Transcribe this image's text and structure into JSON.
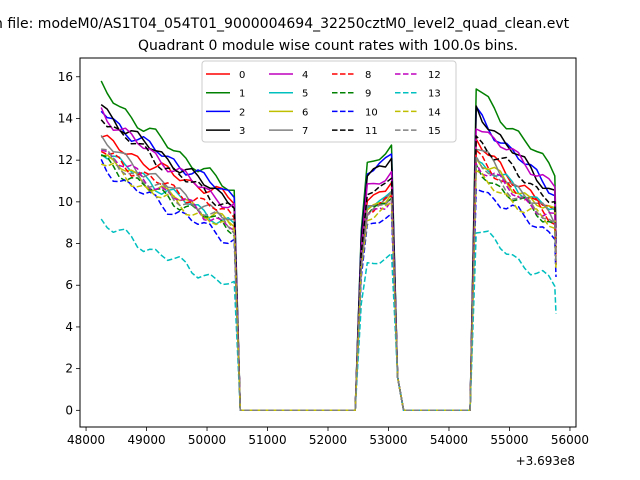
{
  "chart_data": {
    "type": "line",
    "suptitle": "n file: modeM0/AS1T04_054T01_9000004694_32250cztM0_level2_quad_clean.evt",
    "title": "Quadrant 0 module wise count rates with 100.0s bins.",
    "xlabel": "",
    "ylabel": "",
    "x_offset_label": "+3.693e8",
    "xlim": [
      47900,
      56100
    ],
    "ylim": [
      -0.8,
      16.9
    ],
    "xticks": [
      48000,
      49000,
      50000,
      51000,
      52000,
      53000,
      54000,
      55000,
      56000
    ],
    "xtick_labels": [
      "48000",
      "49000",
      "50000",
      "51000",
      "52000",
      "53000",
      "54000",
      "55000",
      "56000"
    ],
    "yticks": [
      0,
      2,
      4,
      6,
      8,
      10,
      12,
      14,
      16
    ],
    "ytick_labels": [
      "0",
      "2",
      "4",
      "6",
      "8",
      "10",
      "12",
      "14",
      "16"
    ],
    "grid": false,
    "legend_position": "top-center",
    "segments": {
      "seg1": {
        "start": 48250,
        "end": 50450
      },
      "gap1": {
        "start": 50550,
        "end": 52450
      },
      "seg2": {
        "start": 52550,
        "end": 53050
      },
      "gap2": {
        "start": 53250,
        "end": 54350
      },
      "seg3": {
        "start": 54450,
        "end": 55750
      }
    },
    "series": [
      {
        "name": "0",
        "color": "#ff0000",
        "dashed": false,
        "level1": [
          13.1,
          10.1
        ],
        "level2": [
          10.3
        ],
        "level3": [
          12.9,
          9.4
        ]
      },
      {
        "name": "1",
        "color": "#008000",
        "dashed": false,
        "level1": [
          15.5,
          10.5
        ],
        "level2": [
          12.0
        ],
        "level3": [
          15.5,
          11.5
        ]
      },
      {
        "name": "2",
        "color": "#0000ff",
        "dashed": false,
        "level1": [
          14.4,
          10.3
        ],
        "level2": [
          11.6
        ],
        "level3": [
          14.3,
          10.5
        ]
      },
      {
        "name": "3",
        "color": "#000000",
        "dashed": false,
        "level1": [
          14.6,
          10.0
        ],
        "level2": [
          11.4
        ],
        "level3": [
          14.5,
          10.4
        ]
      },
      {
        "name": "4",
        "color": "#bf00bf",
        "dashed": false,
        "level1": [
          14.4,
          9.7
        ],
        "level2": [
          10.8
        ],
        "level3": [
          13.8,
          10.8
        ]
      },
      {
        "name": "5",
        "color": "#00bfbf",
        "dashed": false,
        "level1": [
          12.6,
          8.8
        ],
        "level2": [
          9.9
        ],
        "level3": [
          12.0,
          9.6
        ]
      },
      {
        "name": "6",
        "color": "#bfbf00",
        "dashed": false,
        "level1": [
          12.3,
          8.9
        ],
        "level2": [
          9.8
        ],
        "level3": [
          12.1,
          9.4
        ]
      },
      {
        "name": "7",
        "color": "#808080",
        "dashed": false,
        "level1": [
          13.0,
          9.0
        ],
        "level2": [
          9.9
        ],
        "level3": [
          12.7,
          9.1
        ]
      },
      {
        "name": "8",
        "color": "#ff0000",
        "dashed": true,
        "level1": [
          12.5,
          9.3
        ],
        "level2": [
          9.7
        ],
        "level3": [
          12.2,
          9.1
        ]
      },
      {
        "name": "9",
        "color": "#008000",
        "dashed": true,
        "level1": [
          12.1,
          8.7
        ],
        "level2": [
          9.6
        ],
        "level3": [
          11.6,
          8.9
        ]
      },
      {
        "name": "10",
        "color": "#0000ff",
        "dashed": true,
        "level1": [
          11.8,
          8.1
        ],
        "level2": [
          8.9
        ],
        "level3": [
          10.8,
          8.4
        ]
      },
      {
        "name": "11",
        "color": "#000000",
        "dashed": true,
        "level1": [
          14.2,
          9.6
        ],
        "level2": [
          10.5
        ],
        "level3": [
          13.1,
          10.0
        ]
      },
      {
        "name": "12",
        "color": "#bf00bf",
        "dashed": true,
        "level1": [
          12.6,
          8.7
        ],
        "level2": [
          9.5
        ],
        "level3": [
          11.9,
          9.1
        ]
      },
      {
        "name": "13",
        "color": "#00bfbf",
        "dashed": true,
        "level1": [
          9.1,
          5.9
        ],
        "level2": [
          7.1
        ],
        "level3": [
          8.8,
          6.0
        ]
      },
      {
        "name": "14",
        "color": "#bfbf00",
        "dashed": true,
        "level1": [
          12.0,
          8.6
        ],
        "level2": [
          9.4
        ],
        "level3": [
          11.3,
          8.8
        ]
      },
      {
        "name": "15",
        "color": "#808080",
        "dashed": true,
        "level1": [
          12.4,
          8.8
        ],
        "level2": [
          9.6
        ],
        "level3": [
          12.0,
          8.9
        ]
      }
    ]
  }
}
